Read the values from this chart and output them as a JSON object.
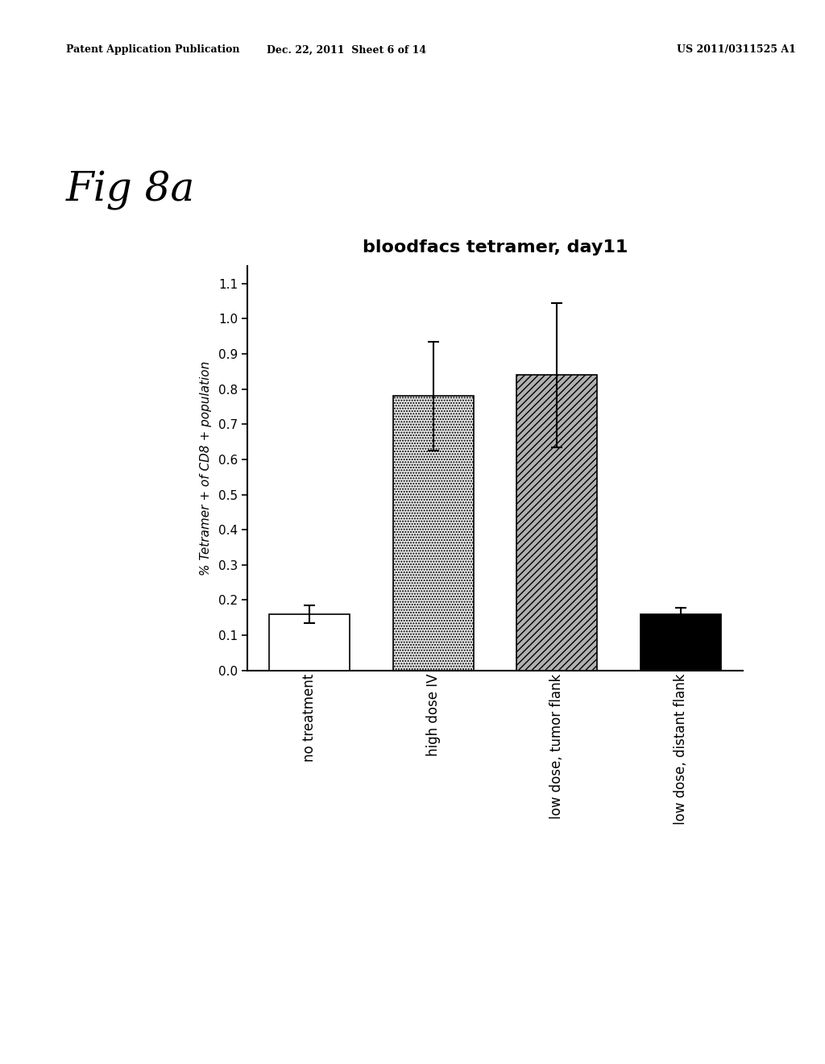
{
  "title": "bloodfacs tetramer, day11",
  "ylabel": "% Tetramer + of CD8 + population",
  "categories": [
    "no treatment",
    "high dose IV",
    "low dose, tumor flank",
    "low dose, distant flank"
  ],
  "values": [
    0.16,
    0.78,
    0.84,
    0.16
  ],
  "errors": [
    0.025,
    0.155,
    0.205,
    0.018
  ],
  "bar_colors": [
    "white",
    "#e8e8e8",
    "#b0b0b0",
    "black"
  ],
  "bar_edgecolors": [
    "black",
    "black",
    "black",
    "black"
  ],
  "bar_hatches": [
    "",
    ".....",
    "////",
    ""
  ],
  "ylim": [
    0.0,
    1.15
  ],
  "yticks": [
    0.0,
    0.1,
    0.2,
    0.3,
    0.4,
    0.5,
    0.6,
    0.7,
    0.8,
    0.9,
    1.0,
    1.1
  ],
  "fig_label": "Fig 8a",
  "background_color": "#ffffff",
  "plot_bg_color": "#ffffff",
  "header_line1": "Patent Application Publication",
  "header_line2": "Dec. 22, 2011  Sheet 6 of 14",
  "header_line3": "US 2011/0311525 A1"
}
